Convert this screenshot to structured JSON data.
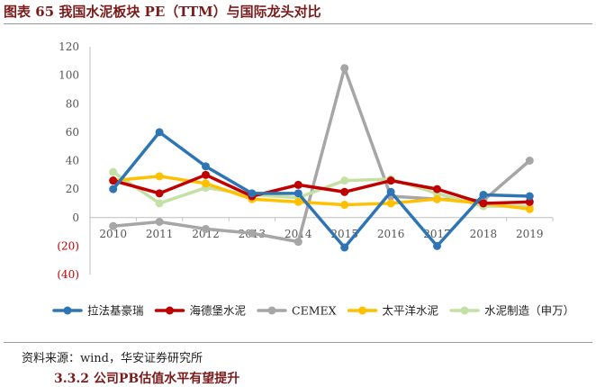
{
  "figure_title": "图表 65  我国水泥板块 PE（TTM）与国际龙头对比",
  "source_note": "资料来源：wind，华安证券研究所",
  "next_heading": "3.3.2  公司PB估值水平有望提升",
  "chart_data": {
    "type": "line",
    "title": "我国水泥板块 PE（TTM）与国际龙头对比",
    "xlabel": "",
    "ylabel": "",
    "categories": [
      "2010",
      "2011",
      "2012",
      "2013",
      "2014",
      "2015",
      "2016",
      "2017",
      "2018",
      "2019"
    ],
    "ylim": [
      -40,
      120
    ],
    "yticks": [
      -40,
      -20,
      0,
      20,
      40,
      60,
      80,
      100,
      120
    ],
    "ytick_labels": [
      "(40)",
      "(20)",
      "0",
      "20",
      "40",
      "60",
      "80",
      "100",
      "120"
    ],
    "legend_position": "bottom",
    "grid": false,
    "series": [
      {
        "name": "拉法基豪瑞",
        "color": "#2e75b6",
        "values": [
          20,
          60,
          36,
          17,
          17,
          -21,
          18,
          -20,
          16,
          15
        ]
      },
      {
        "name": "海德堡水泥",
        "color": "#c00000",
        "values": [
          26,
          17,
          30,
          15,
          23,
          18,
          26,
          20,
          10,
          11
        ]
      },
      {
        "name": "CEMEX",
        "color": "#a6a6a6",
        "values": [
          -6,
          -3,
          -8,
          -11,
          -17,
          105,
          15,
          13,
          12,
          40
        ]
      },
      {
        "name": "太平洋水泥",
        "color": "#ffc000",
        "values": [
          26,
          29,
          24,
          13,
          11,
          9,
          10,
          13,
          10,
          6
        ]
      },
      {
        "name": "水泥制造（申万）",
        "color": "#c5e0a5",
        "values": [
          32,
          10,
          21,
          16,
          14,
          26,
          27,
          17,
          8,
          8
        ]
      }
    ]
  }
}
